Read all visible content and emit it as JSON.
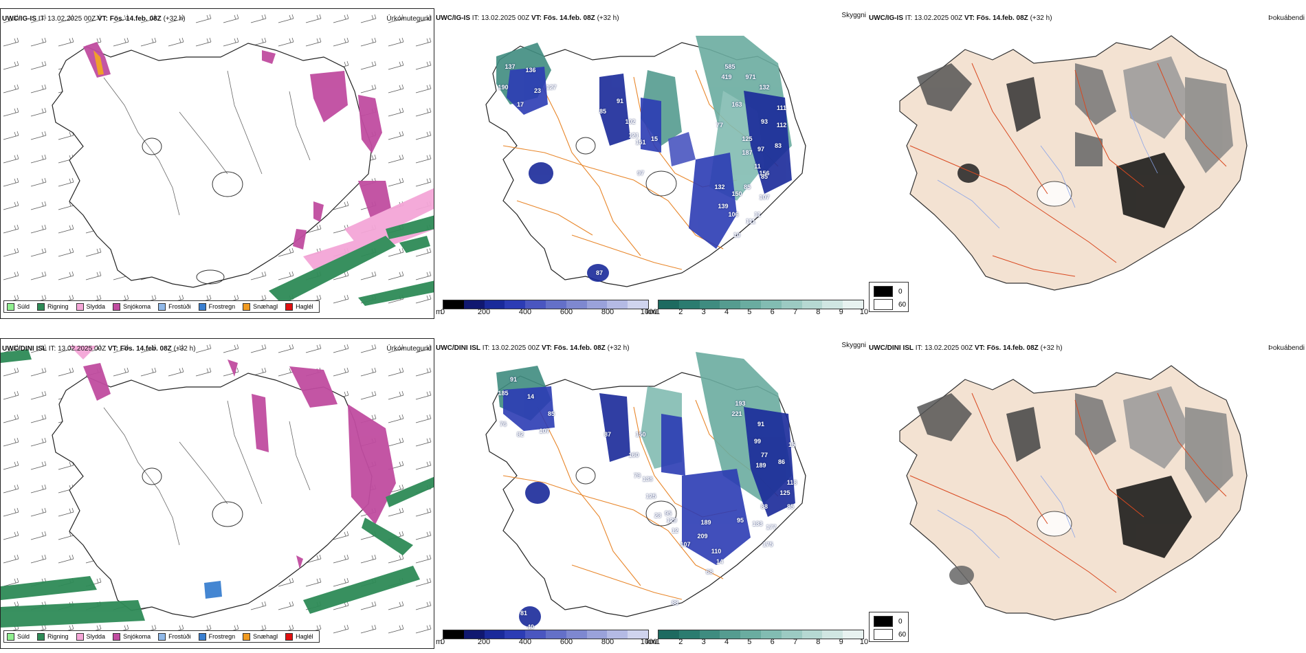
{
  "rows": [
    {
      "model": "UWC/IG-IS",
      "it_label": "IT: 13.02.2025 00Z",
      "vt_label": "VT: Fös. 14.feb. 08Z",
      "lead": "(+32 h)",
      "snow_labels": [
        "137",
        "136",
        "190",
        "23",
        "127",
        "17",
        "85",
        "91",
        "102",
        "121",
        "151",
        "15",
        "97",
        "585",
        "419",
        "971",
        "132",
        "163",
        "111",
        "77",
        "125",
        "93",
        "112",
        "83",
        "97",
        "187",
        "11",
        "156",
        "85",
        "107",
        "132",
        "150",
        "85",
        "139",
        "106",
        "11",
        "111",
        "10",
        "87"
      ]
    },
    {
      "model": "UWC/DINI ISL",
      "it_label": "IT: 13.02.2025 00Z",
      "vt_label": "VT: Fös. 14.feb. 08Z",
      "lead": "(+32 h)",
      "snow_labels": [
        "91",
        "185",
        "14",
        "85",
        "76",
        "82",
        "107",
        "87",
        "150",
        "160",
        "79",
        "138",
        "125",
        "23",
        "95",
        "193",
        "221",
        "91",
        "99",
        "77",
        "189",
        "86",
        "15",
        "118",
        "125",
        "85",
        "88",
        "129",
        "12",
        "209",
        "189",
        "95",
        "133",
        "177",
        "175",
        "107",
        "110",
        "14",
        "68",
        "88",
        "40",
        "81"
      ]
    }
  ],
  "titles": {
    "precip": "Úrkomutegund",
    "visibility": "Skyggni",
    "cloud": "Þokuábendi"
  },
  "precip_legend": [
    {
      "label": "Súld",
      "color": "#90ee90"
    },
    {
      "label": "Rigning",
      "color": "#2e8b57"
    },
    {
      "label": "Slydda",
      "color": "#f4a6d7"
    },
    {
      "label": "Snjókoma",
      "color": "#c04ca0"
    },
    {
      "label": "Frostúði",
      "color": "#8fb8e8"
    },
    {
      "label": "Frostregn",
      "color": "#3a7fd0"
    },
    {
      "label": "Snæhagl",
      "color": "#f09a20"
    },
    {
      "label": "Haglél",
      "color": "#e01010"
    }
  ],
  "snow_scale": {
    "unit": "m",
    "ticks": [
      "0",
      "200",
      "400",
      "600",
      "800",
      "1000"
    ],
    "colors": [
      "#000000",
      "#101870",
      "#1a2a9a",
      "#2c3cb4",
      "#4a56c0",
      "#6470c8",
      "#7e88d0",
      "#9aa2da",
      "#b4bae4",
      "#d0d4ee"
    ]
  },
  "vis_scale": {
    "unit": "km",
    "ticks": [
      "1",
      "2",
      "3",
      "4",
      "5",
      "6",
      "7",
      "8",
      "9",
      "10"
    ],
    "colors": [
      "#1d6a60",
      "#2b7c70",
      "#3f8c80",
      "#559c90",
      "#6aaca0",
      "#82bcb2",
      "#9ccac2",
      "#b6d8d2",
      "#d0e6e2",
      "#e8f2f0"
    ]
  },
  "fog_scale": {
    "ticks": [
      "0",
      "60"
    ],
    "colors": [
      "#000000",
      "#ffffff"
    ]
  }
}
